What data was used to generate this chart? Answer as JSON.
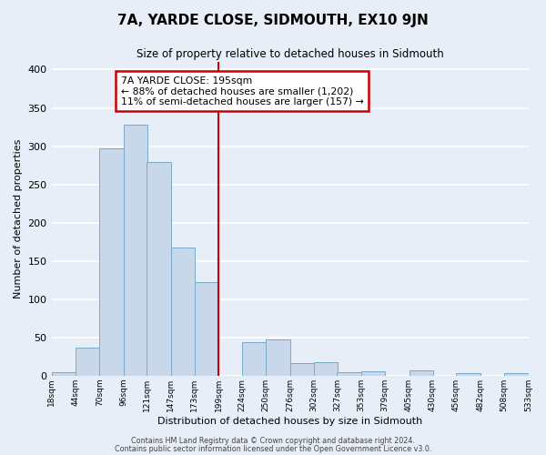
{
  "title": "7A, YARDE CLOSE, SIDMOUTH, EX10 9JN",
  "subtitle": "Size of property relative to detached houses in Sidmouth",
  "xlabel": "Distribution of detached houses by size in Sidmouth",
  "ylabel": "Number of detached properties",
  "bar_color": "#c8d8ea",
  "bar_edge_color": "#7aaac8",
  "bg_color": "#e8eef8",
  "fig_bg_color": "#e8eef8",
  "grid_color": "#ffffff",
  "vline_x": 199,
  "vline_color": "#cc0000",
  "annotation_lines": [
    "7A YARDE CLOSE: 195sqm",
    "← 88% of detached houses are smaller (1,202)",
    "11% of semi-detached houses are larger (157) →"
  ],
  "annotation_box_color": "#cc0000",
  "bins_left": [
    18,
    44,
    70,
    96,
    121,
    147,
    173,
    199,
    224,
    250,
    276,
    302,
    327,
    353,
    379,
    405,
    430,
    456,
    482,
    508
  ],
  "bin_width": 26,
  "bar_heights": [
    4,
    37,
    297,
    328,
    279,
    168,
    122,
    0,
    44,
    47,
    16,
    18,
    5,
    6,
    0,
    7,
    0,
    3,
    0,
    3
  ],
  "tick_labels": [
    "18sqm",
    "44sqm",
    "70sqm",
    "96sqm",
    "121sqm",
    "147sqm",
    "173sqm",
    "199sqm",
    "224sqm",
    "250sqm",
    "276sqm",
    "302sqm",
    "327sqm",
    "353sqm",
    "379sqm",
    "405sqm",
    "430sqm",
    "456sqm",
    "482sqm",
    "508sqm",
    "533sqm"
  ],
  "ylim": [
    0,
    410
  ],
  "yticks": [
    0,
    50,
    100,
    150,
    200,
    250,
    300,
    350,
    400
  ],
  "footer_line1": "Contains HM Land Registry data © Crown copyright and database right 2024.",
  "footer_line2": "Contains public sector information licensed under the Open Government Licence v3.0."
}
